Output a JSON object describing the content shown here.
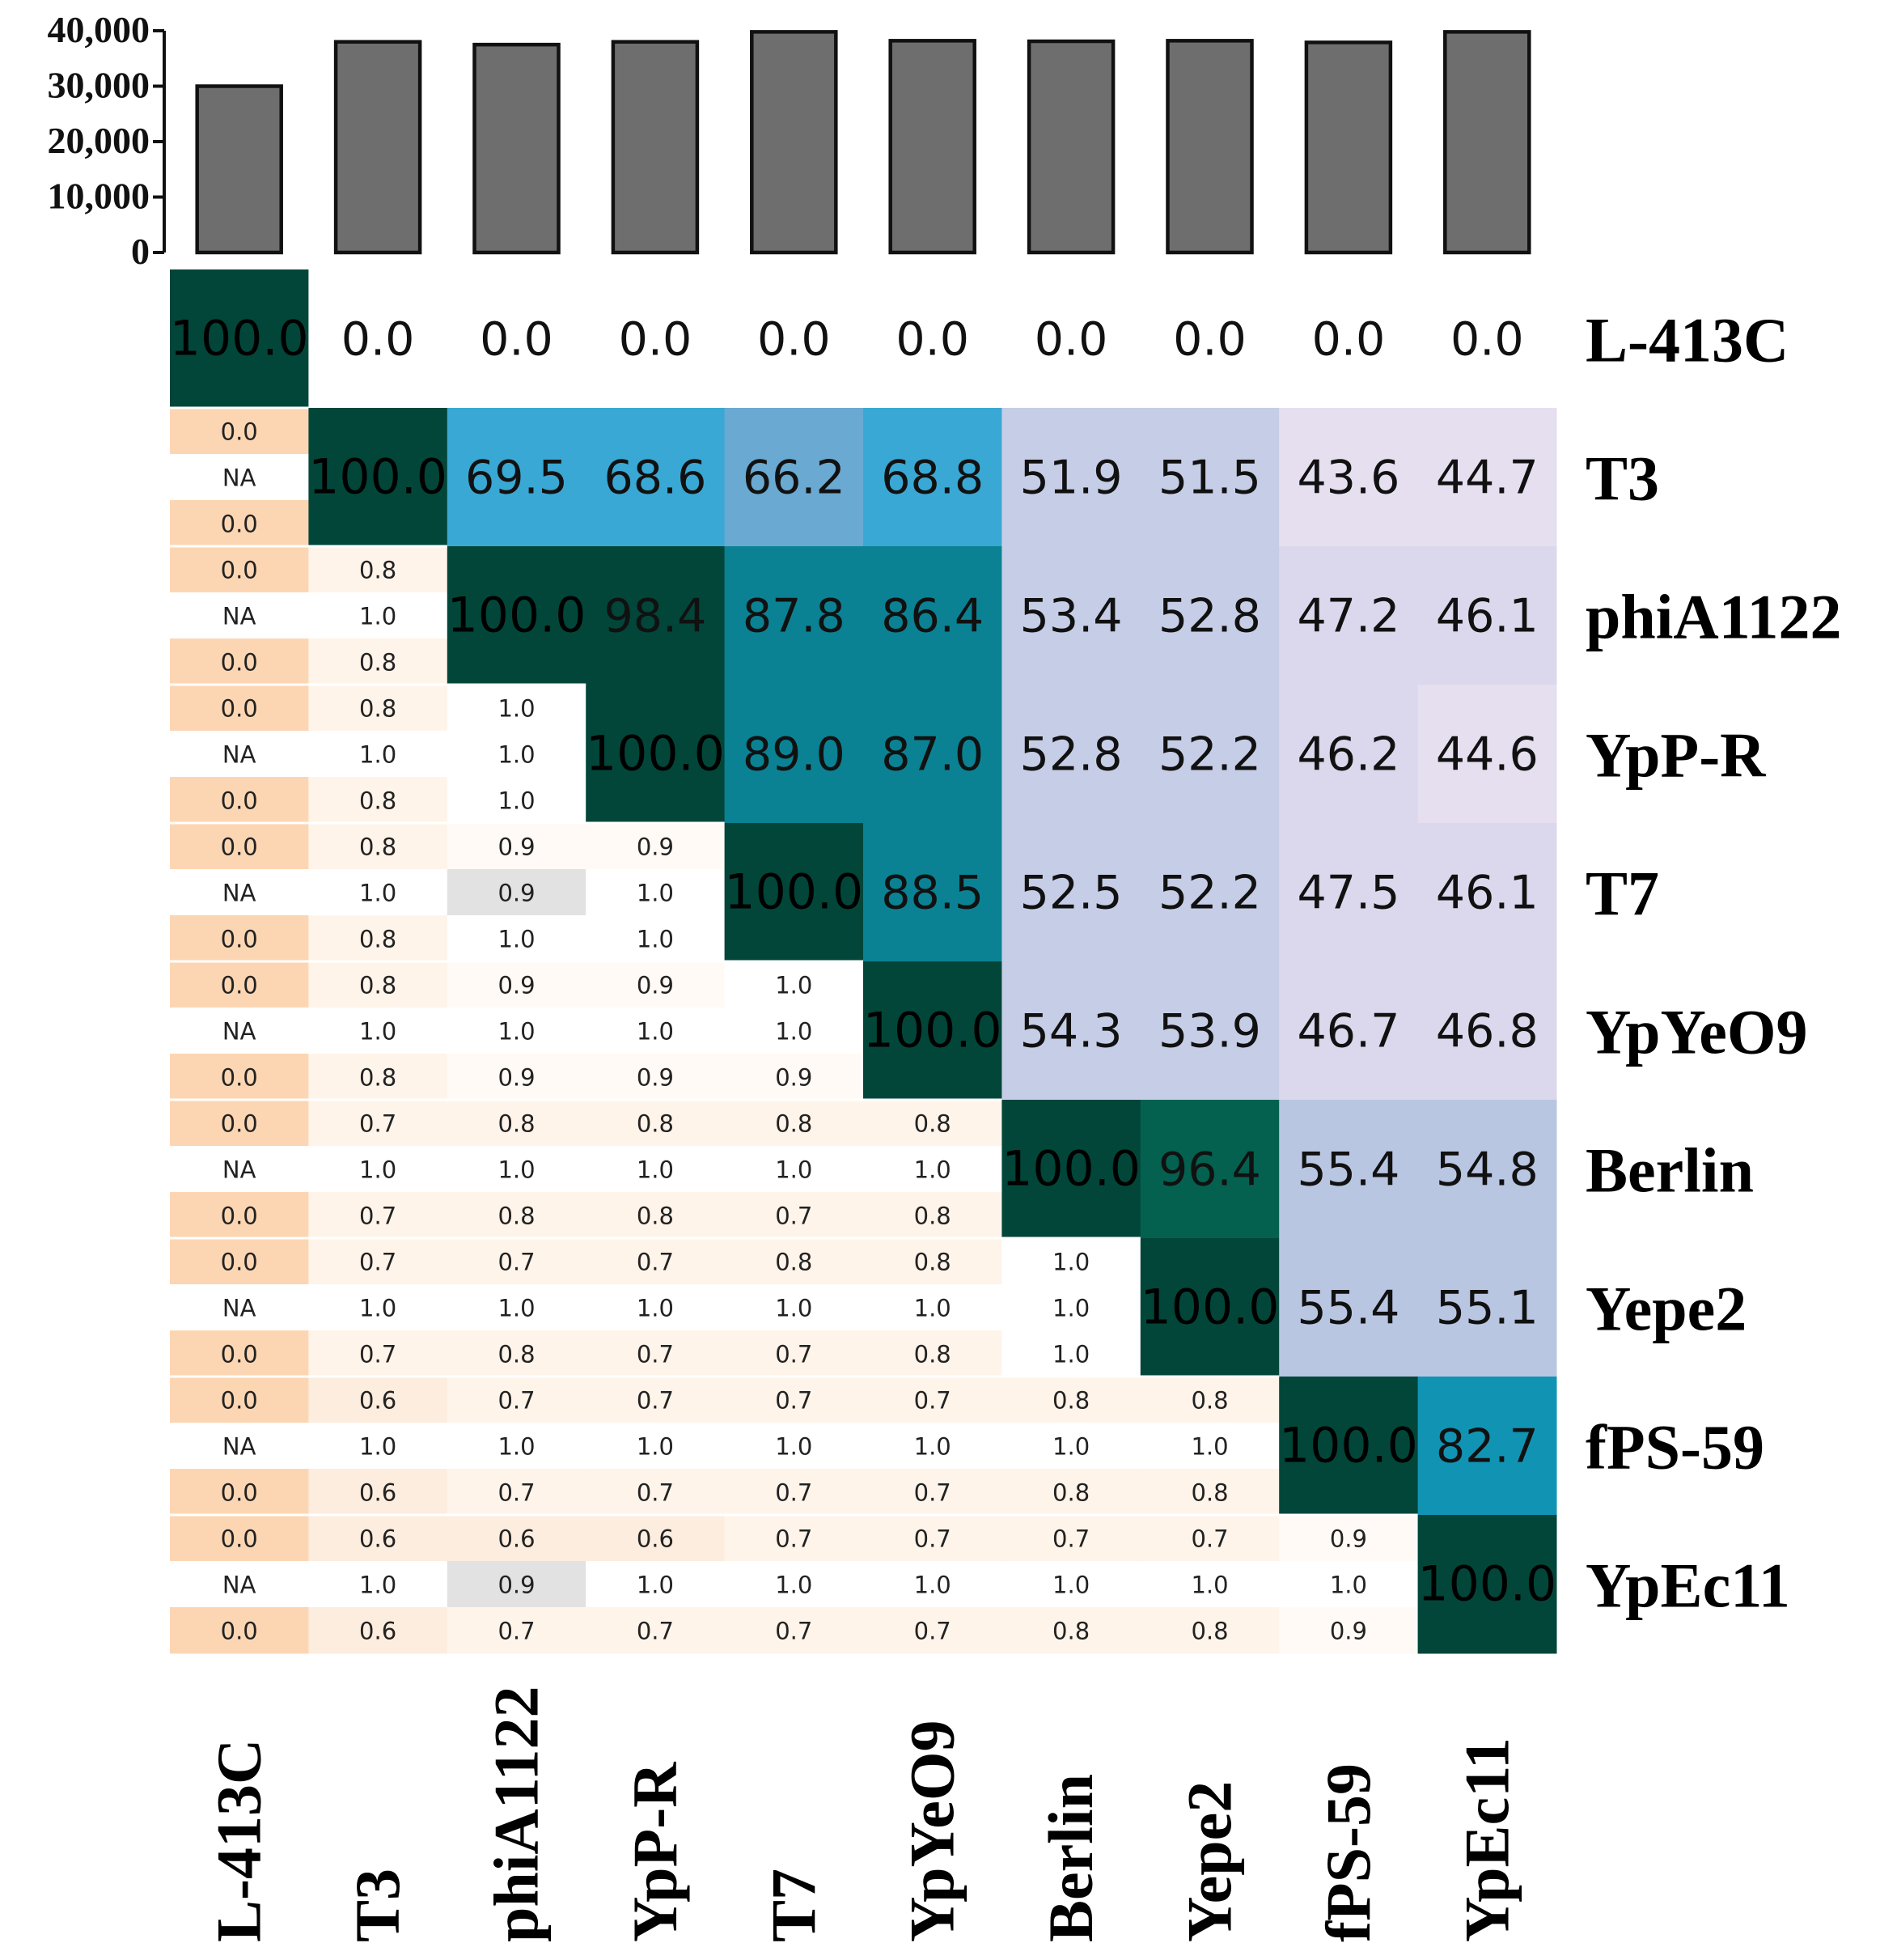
{
  "chart_data": {
    "type": "heatmap",
    "title": "",
    "phages": [
      "L-413C",
      "T3",
      "phiA1122",
      "YpP-R",
      "T7",
      "YpYeO9",
      "Berlin",
      "Yepe2",
      "fPS-59",
      "YpEc11"
    ],
    "genome_size_bar": {
      "type": "bar",
      "categories": [
        "L-413C",
        "T3",
        "phiA1122",
        "YpP-R",
        "T7",
        "YpYeO9",
        "Berlin",
        "Yepe2",
        "fPS-59",
        "YpEc11"
      ],
      "values": [
        30000,
        38000,
        37500,
        38000,
        39800,
        38200,
        38100,
        38200,
        37900,
        39800
      ],
      "ylim": [
        0,
        40000
      ],
      "yticks": [
        "40,000",
        "30,000",
        "20,000",
        "10,000",
        "0"
      ],
      "ytick_values": [
        40000,
        30000,
        20000,
        10000,
        0
      ],
      "bar_color": "#6e6e6e"
    },
    "identity_matrix": [
      [
        "100.0",
        "0.0",
        "0.0",
        "0.0",
        "0.0",
        "0.0",
        "0.0",
        "0.0",
        "0.0",
        "0.0"
      ],
      [
        null,
        "100.0",
        "69.5",
        "68.6",
        "66.2",
        "68.8",
        "51.9",
        "51.5",
        "43.6",
        "44.7"
      ],
      [
        null,
        null,
        "100.0",
        "98.4",
        "87.8",
        "86.4",
        "53.4",
        "52.8",
        "47.2",
        "46.1"
      ],
      [
        null,
        null,
        null,
        "100.0",
        "89.0",
        "87.0",
        "52.8",
        "52.2",
        "46.2",
        "44.6"
      ],
      [
        null,
        null,
        null,
        null,
        "100.0",
        "88.5",
        "52.5",
        "52.2",
        "47.5",
        "46.1"
      ],
      [
        null,
        null,
        null,
        null,
        null,
        "100.0",
        "54.3",
        "53.9",
        "46.7",
        "46.8"
      ],
      [
        null,
        null,
        null,
        null,
        null,
        null,
        "100.0",
        "96.4",
        "55.4",
        "54.8"
      ],
      [
        null,
        null,
        null,
        null,
        null,
        null,
        null,
        "100.0",
        "55.4",
        "55.1"
      ],
      [
        null,
        null,
        null,
        null,
        null,
        null,
        null,
        null,
        "100.0",
        "82.7"
      ],
      [
        null,
        null,
        null,
        null,
        null,
        null,
        null,
        null,
        null,
        "100.0"
      ]
    ],
    "lower_triangle_triplets": [
      [],
      [
        [
          "0.0",
          "NA",
          "0.0"
        ]
      ],
      [
        [
          "0.0",
          "NA",
          "0.0"
        ],
        [
          "0.8",
          "1.0",
          "0.8"
        ]
      ],
      [
        [
          "0.0",
          "NA",
          "0.0"
        ],
        [
          "0.8",
          "1.0",
          "0.8"
        ],
        [
          "1.0",
          "1.0",
          "1.0"
        ]
      ],
      [
        [
          "0.0",
          "NA",
          "0.0"
        ],
        [
          "0.8",
          "1.0",
          "0.8"
        ],
        [
          "0.9",
          "0.9",
          "1.0"
        ],
        [
          "0.9",
          "1.0",
          "1.0"
        ]
      ],
      [
        [
          "0.0",
          "NA",
          "0.0"
        ],
        [
          "0.8",
          "1.0",
          "0.8"
        ],
        [
          "0.9",
          "1.0",
          "0.9"
        ],
        [
          "0.9",
          "1.0",
          "0.9"
        ],
        [
          "1.0",
          "1.0",
          "0.9"
        ]
      ],
      [
        [
          "0.0",
          "NA",
          "0.0"
        ],
        [
          "0.7",
          "1.0",
          "0.7"
        ],
        [
          "0.8",
          "1.0",
          "0.8"
        ],
        [
          "0.8",
          "1.0",
          "0.8"
        ],
        [
          "0.8",
          "1.0",
          "0.7"
        ],
        [
          "0.8",
          "1.0",
          "0.8"
        ]
      ],
      [
        [
          "0.0",
          "NA",
          "0.0"
        ],
        [
          "0.7",
          "1.0",
          "0.7"
        ],
        [
          "0.7",
          "1.0",
          "0.8"
        ],
        [
          "0.7",
          "1.0",
          "0.7"
        ],
        [
          "0.8",
          "1.0",
          "0.7"
        ],
        [
          "0.8",
          "1.0",
          "0.8"
        ],
        [
          "1.0",
          "1.0",
          "1.0"
        ]
      ],
      [
        [
          "0.0",
          "NA",
          "0.0"
        ],
        [
          "0.6",
          "1.0",
          "0.6"
        ],
        [
          "0.7",
          "1.0",
          "0.7"
        ],
        [
          "0.7",
          "1.0",
          "0.7"
        ],
        [
          "0.7",
          "1.0",
          "0.7"
        ],
        [
          "0.7",
          "1.0",
          "0.7"
        ],
        [
          "0.8",
          "1.0",
          "0.8"
        ],
        [
          "0.8",
          "1.0",
          "0.8"
        ]
      ],
      [
        [
          "0.0",
          "NA",
          "0.0"
        ],
        [
          "0.6",
          "1.0",
          "0.6"
        ],
        [
          "0.6",
          "0.9",
          "0.7"
        ],
        [
          "0.6",
          "1.0",
          "0.7"
        ],
        [
          "0.7",
          "1.0",
          "0.7"
        ],
        [
          "0.7",
          "1.0",
          "0.7"
        ],
        [
          "0.7",
          "1.0",
          "0.8"
        ],
        [
          "0.7",
          "1.0",
          "0.8"
        ],
        [
          "0.9",
          "1.0",
          "0.9"
        ]
      ]
    ],
    "highlighted_cells": [
      [
        4,
        2,
        1
      ],
      [
        9,
        2,
        1
      ]
    ],
    "colors": {
      "diagonal": "#02463a",
      "berlin_yepe2": "#046150",
      "teal_dark": "#0a8293",
      "teal_mid": "#1194b4",
      "blue_light": "#3aa8d4",
      "blue_soft": "#4fb0dc",
      "steel": "#6aa9d1",
      "lavender": "#c6cde6",
      "lavender_blue": "#b9c6e2",
      "pale_pink": "#e6dff0",
      "pale_lilac": "#dbd7ec",
      "peach_strong": "#fcd6b3",
      "peach_light": "#fdeddf",
      "peach_faint": "#fff4ea",
      "grey_highlight": "#e2e2e2"
    }
  }
}
